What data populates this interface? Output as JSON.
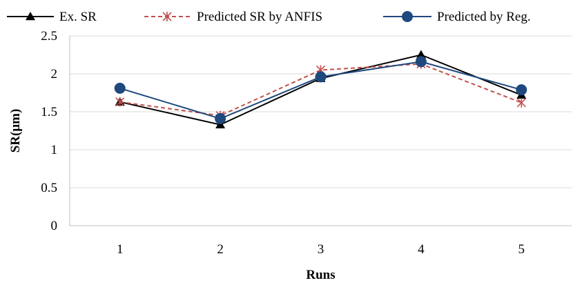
{
  "chart_data": {
    "type": "line",
    "title": "",
    "xlabel": "Runs",
    "ylabel": "SR(μm)",
    "categories": [
      "1",
      "2",
      "3",
      "4",
      "5"
    ],
    "ylim": [
      0,
      2.5
    ],
    "yticks": [
      "0",
      "0.5",
      "1",
      "1.5",
      "2",
      "2.5"
    ],
    "grid": "horizontal",
    "legend_position": "top",
    "series": [
      {
        "name": "Ex. SR",
        "values": [
          1.63,
          1.33,
          1.94,
          2.25,
          1.72
        ],
        "color": "#000000",
        "marker": "triangle",
        "line_style": "solid"
      },
      {
        "name": "Predicted SR by ANFIS",
        "values": [
          1.63,
          1.45,
          2.05,
          2.13,
          1.62
        ],
        "color": "#C0504D",
        "marker": "asterisk",
        "line_style": "dashed"
      },
      {
        "name": "Predicted by Reg.",
        "values": [
          1.81,
          1.41,
          1.96,
          2.16,
          1.79
        ],
        "color": "#1F497D",
        "marker": "circle",
        "line_style": "solid"
      }
    ]
  }
}
